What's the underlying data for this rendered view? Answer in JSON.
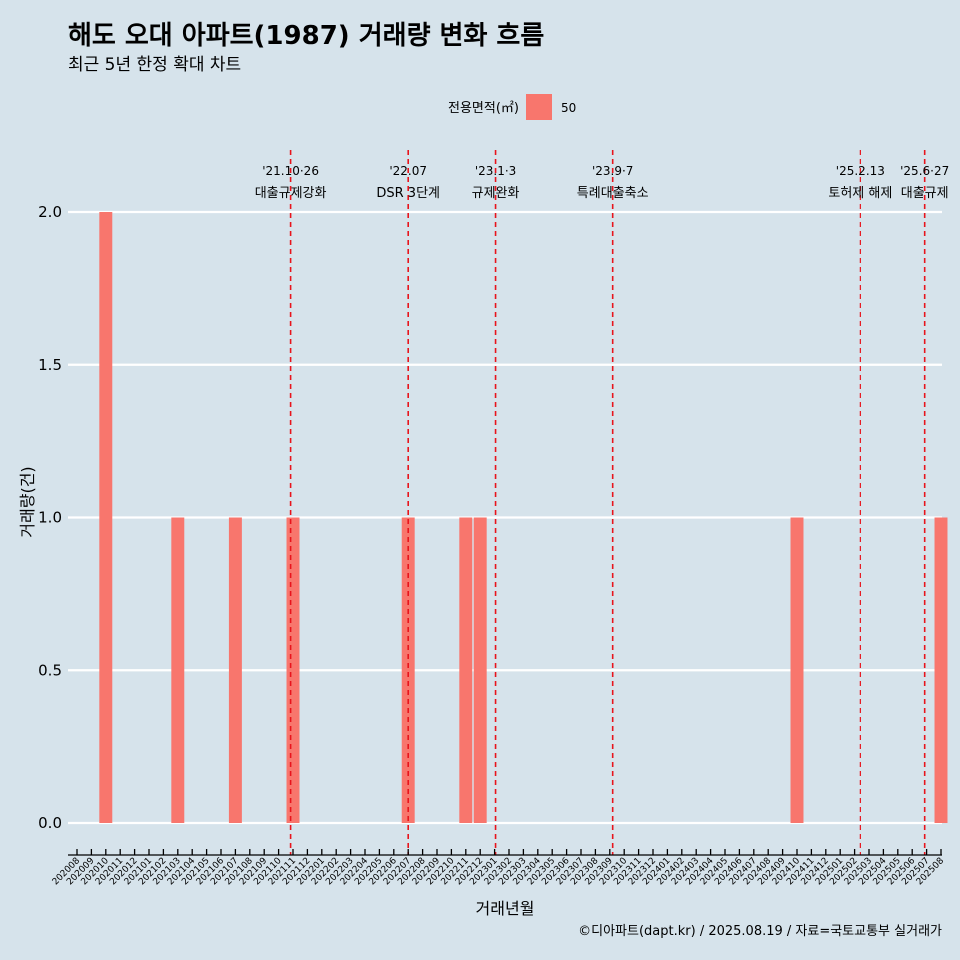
{
  "title": "해도 오대 아파트(1987) 거래량 변화 흐름",
  "subtitle": "최근 5년 한정 확대 차트",
  "caption": "©디아파트(dapt.kr) / 2025.08.19 / 자료=국토교통부 실거래가",
  "legend": {
    "title": "전용면적(㎡)",
    "label": "50"
  },
  "colors": {
    "background": "#d6e3eb",
    "bar": "#f8766d",
    "event_line": "#e8141c",
    "grid": "#ffffff"
  },
  "chart_data": {
    "type": "bar",
    "xlabel": "거래년월",
    "ylabel": "거래량(건)",
    "ylim": [
      0,
      2
    ],
    "yticks": [
      "0.0",
      "0.5",
      "1.0",
      "1.5",
      "2.0"
    ],
    "grid": "horizontal",
    "legend_position": "top",
    "categories": [
      "202008",
      "202009",
      "202010",
      "202011",
      "202012",
      "202101",
      "202102",
      "202103",
      "202104",
      "202105",
      "202106",
      "202107",
      "202108",
      "202109",
      "202110",
      "202111",
      "202112",
      "202201",
      "202202",
      "202203",
      "202204",
      "202205",
      "202206",
      "202207",
      "202208",
      "202209",
      "202210",
      "202211",
      "202212",
      "202301",
      "202302",
      "202303",
      "202304",
      "202305",
      "202306",
      "202307",
      "202308",
      "202309",
      "202310",
      "202311",
      "202312",
      "202401",
      "202402",
      "202403",
      "202404",
      "202405",
      "202406",
      "202407",
      "202408",
      "202409",
      "202410",
      "202411",
      "202412",
      "202501",
      "202502",
      "202503",
      "202504",
      "202505",
      "202506",
      "202507",
      "202508"
    ],
    "series": [
      {
        "name": "50",
        "values": [
          0,
          0,
          2,
          0,
          0,
          0,
          0,
          1,
          0,
          0,
          0,
          1,
          0,
          0,
          0,
          1,
          0,
          0,
          0,
          0,
          0,
          0,
          0,
          1,
          0,
          0,
          0,
          1,
          1,
          0,
          0,
          0,
          0,
          0,
          0,
          0,
          0,
          0,
          0,
          0,
          0,
          0,
          0,
          0,
          0,
          0,
          0,
          0,
          0,
          0,
          1,
          0,
          0,
          0,
          0,
          0,
          0,
          0,
          0,
          0,
          1
        ]
      }
    ],
    "events": [
      {
        "date": "'21.10·26",
        "name": "대출규제강화",
        "month": "202110",
        "day": 26
      },
      {
        "date": "'22.07",
        "name": "DSR 3단계",
        "month": "202207",
        "day": 1
      },
      {
        "date": "'23.1·3",
        "name": "규제완화",
        "month": "202301",
        "day": 3
      },
      {
        "date": "'23.9·7",
        "name": "특례대출축소",
        "month": "202309",
        "day": 7
      },
      {
        "date": "'25.2.13",
        "name": "토허제 해제",
        "month": "202502",
        "day": 13
      },
      {
        "date": "'25.6·27",
        "name": "대출규제",
        "month": "202506",
        "day": 27
      }
    ]
  }
}
